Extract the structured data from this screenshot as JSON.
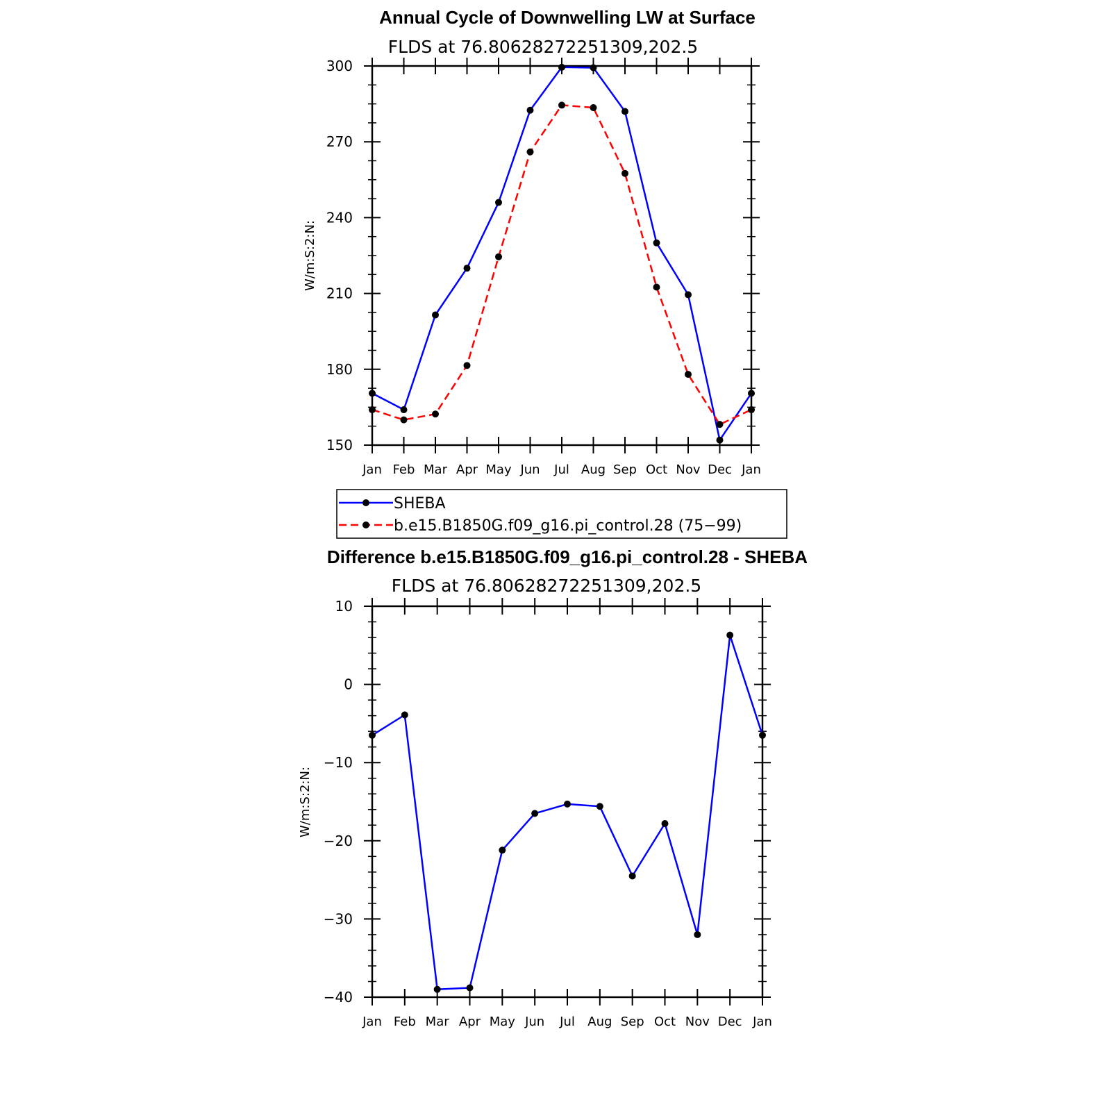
{
  "chart_data": [
    {
      "type": "line",
      "title": "Annual Cycle of Downwelling LW at Surface",
      "subtitle": "FLDS at 76.80628272251309,202.5",
      "ylabel": "W/m:S:2:N:",
      "xlabel": "",
      "categories": [
        "Jan",
        "Feb",
        "Mar",
        "Apr",
        "May",
        "Jun",
        "Jul",
        "Aug",
        "Sep",
        "Oct",
        "Nov",
        "Dec",
        "Jan"
      ],
      "ylim": [
        150,
        300
      ],
      "yticks": [
        "150",
        "180",
        "210",
        "240",
        "270",
        "300"
      ],
      "grid": false,
      "legend_position": "bottom",
      "series": [
        {
          "name": "SHEBA",
          "color": "#0000ff",
          "style": "solid",
          "values": [
            170.5,
            164,
            201.5,
            220,
            246,
            282.5,
            299.5,
            299.3,
            282,
            230,
            209.5,
            152,
            170.5
          ]
        },
        {
          "name": "b.e15.B1850G.f09_g16.pi_control.28 (75−99)",
          "color": "#ff0000",
          "style": "dashed",
          "values": [
            164,
            160,
            162.3,
            181.5,
            224.5,
            266,
            284.5,
            283.5,
            257.5,
            212.5,
            178,
            158.2,
            164
          ]
        }
      ]
    },
    {
      "type": "line",
      "title": "Difference b.e15.B1850G.f09_g16.pi_control.28 - SHEBA",
      "subtitle": "FLDS at 76.80628272251309,202.5",
      "ylabel": "W/m:S:2:N:",
      "xlabel": "",
      "categories": [
        "Jan",
        "Feb",
        "Mar",
        "Apr",
        "May",
        "Jun",
        "Jul",
        "Aug",
        "Sep",
        "Oct",
        "Nov",
        "Dec",
        "Jan"
      ],
      "ylim": [
        -40,
        10
      ],
      "yticks": [
        "−40",
        "−30",
        "−20",
        "−10",
        "0",
        "10"
      ],
      "grid": false,
      "series": [
        {
          "color": "#0000ff",
          "style": "solid",
          "values": [
            -6.5,
            -3.9,
            -39,
            -38.8,
            -21.2,
            -16.5,
            -15.3,
            -15.6,
            -24.5,
            -17.8,
            -32,
            6.3,
            -6.5
          ]
        }
      ]
    }
  ]
}
